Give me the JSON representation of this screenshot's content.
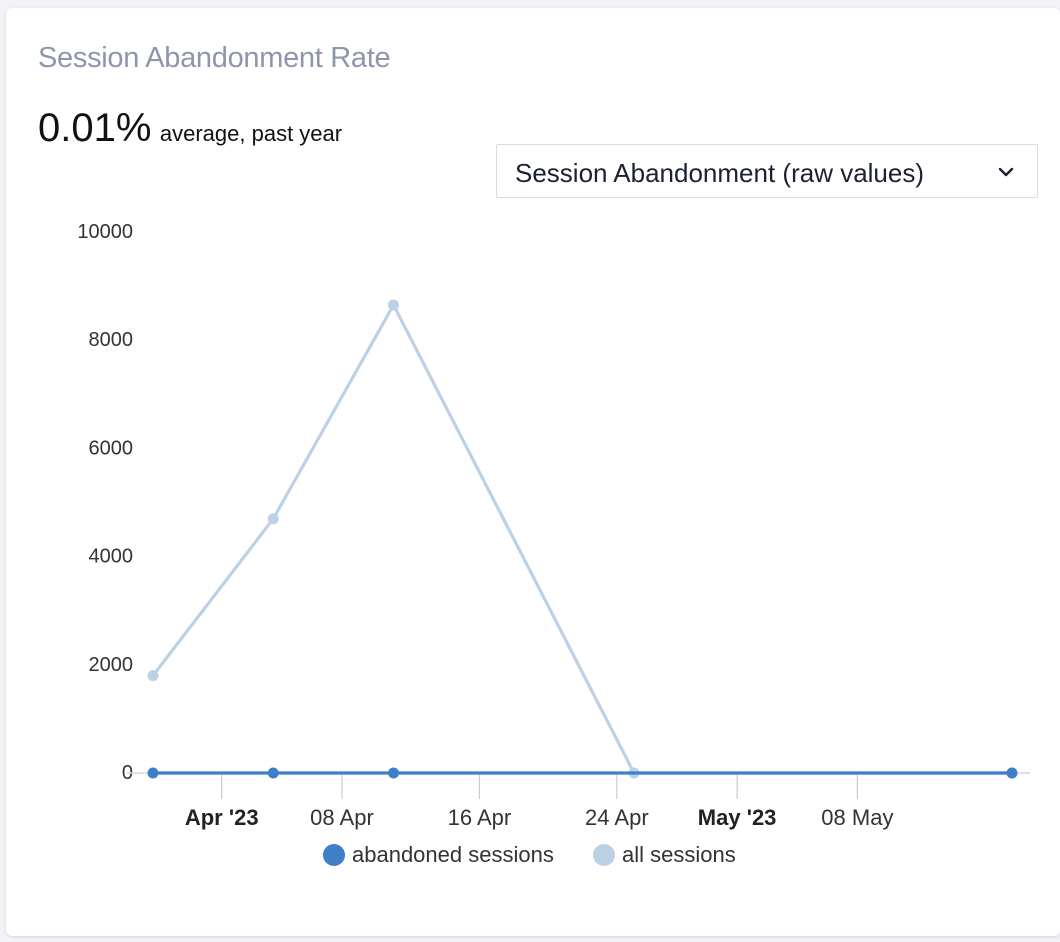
{
  "widget": {
    "title": "Session Abandonment Rate",
    "summary_value": "0.01%",
    "summary_label": "average, past year",
    "metric_select": {
      "selected": "Session Abandonment (raw values)",
      "icon": "chevron-down-icon"
    }
  },
  "colors": {
    "abandoned": "#3f7fc7",
    "all": "#bcd0e6",
    "axis_text": "#333333",
    "title": "#8e96ae"
  },
  "chart_data": {
    "type": "line",
    "title": "",
    "xlabel": "",
    "ylabel": "",
    "ylim": [
      0,
      10000
    ],
    "y_ticks": [
      "10000",
      "8000",
      "6000",
      "4000",
      "2000",
      "0"
    ],
    "x_range": [
      "2023-03-28",
      "2023-05-17"
    ],
    "x_ticks": [
      {
        "label": "Apr '23",
        "date": "2023-04-01",
        "bold": true
      },
      {
        "label": "08 Apr",
        "date": "2023-04-08",
        "bold": false
      },
      {
        "label": "16 Apr",
        "date": "2023-04-16",
        "bold": false
      },
      {
        "label": "24 Apr",
        "date": "2023-04-24",
        "bold": false
      },
      {
        "label": "May '23",
        "date": "2023-05-01",
        "bold": true
      },
      {
        "label": "08 May",
        "date": "2023-05-08",
        "bold": false
      }
    ],
    "x": [
      "2023-03-28",
      "2023-04-04",
      "2023-04-11",
      "2023-04-25",
      "2023-05-17"
    ],
    "series": [
      {
        "name": "all sessions",
        "color": "#bcd0e6",
        "values": [
          1800,
          4700,
          8650,
          0,
          0
        ]
      },
      {
        "name": "abandoned sessions",
        "color": "#3f7fc7",
        "values": [
          0,
          0,
          0,
          null,
          0
        ]
      }
    ],
    "legend": {
      "position": "bottom",
      "items": [
        {
          "label": "abandoned sessions",
          "color": "#3f7fc7"
        },
        {
          "label": "all sessions",
          "color": "#bcd0e6"
        }
      ]
    },
    "grid": false
  }
}
